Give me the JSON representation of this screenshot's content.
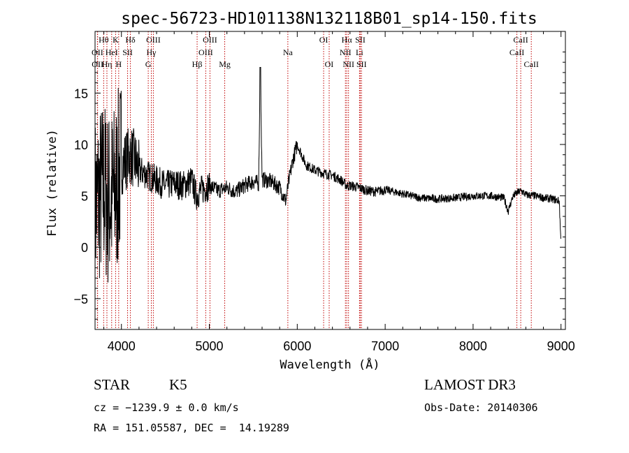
{
  "chart_data": {
    "type": "line",
    "title": "spec-56723-HD101138N132118B01_sp14-150.fits",
    "xlabel": "Wavelength (Å)",
    "ylabel": "Flux (relative)",
    "xlim": [
      3700,
      9050
    ],
    "ylim": [
      -8,
      21
    ],
    "x_ticks": [
      4000,
      5000,
      6000,
      7000,
      8000,
      9000
    ],
    "y_ticks": [
      -5,
      0,
      5,
      10,
      15
    ],
    "spectral_lines": [
      {
        "label": "Hθ",
        "wavelength": 3798,
        "row": 0
      },
      {
        "label": "OII",
        "wavelength": 3727,
        "row": 1
      },
      {
        "label": "OII",
        "wavelength": 3729,
        "row": 2
      },
      {
        "label": "Hη",
        "wavelength": 3835,
        "row": 2
      },
      {
        "label": "HeI",
        "wavelength": 3889,
        "row": 1
      },
      {
        "label": "K",
        "wavelength": 3934,
        "row": 0
      },
      {
        "label": "H",
        "wavelength": 3969,
        "row": 2
      },
      {
        "label": "SII",
        "wavelength": 4070,
        "row": 1
      },
      {
        "label": "Hδ",
        "wavelength": 4102,
        "row": 0
      },
      {
        "label": "OIII",
        "wavelength": 4363,
        "row": 0
      },
      {
        "label": "Hγ",
        "wavelength": 4340,
        "row": 1
      },
      {
        "label": "G",
        "wavelength": 4305,
        "row": 2
      },
      {
        "label": "Hβ",
        "wavelength": 4861,
        "row": 2
      },
      {
        "label": "OIII",
        "wavelength": 5007,
        "row": 0
      },
      {
        "label": "OIII",
        "wavelength": 4959,
        "row": 1
      },
      {
        "label": "Mg",
        "wavelength": 5175,
        "row": 2
      },
      {
        "label": "Na",
        "wavelength": 5893,
        "row": 1
      },
      {
        "label": "OI",
        "wavelength": 6300,
        "row": 0
      },
      {
        "label": "OI",
        "wavelength": 6363,
        "row": 2
      },
      {
        "label": "Hα",
        "wavelength": 6563,
        "row": 0
      },
      {
        "label": "NII",
        "wavelength": 6548,
        "row": 1
      },
      {
        "label": "NII",
        "wavelength": 6583,
        "row": 2
      },
      {
        "label": "SII",
        "wavelength": 6717,
        "row": 0
      },
      {
        "label": "Li",
        "wavelength": 6708,
        "row": 1
      },
      {
        "label": "SII",
        "wavelength": 6731,
        "row": 2
      },
      {
        "label": "CaII",
        "wavelength": 8498,
        "row": 1
      },
      {
        "label": "CaII",
        "wavelength": 8542,
        "row": 0
      },
      {
        "label": "CaII",
        "wavelength": 8662,
        "row": 2
      }
    ],
    "series": [
      {
        "name": "flux",
        "color": "#000000",
        "x": [
          3700,
          3750,
          3800,
          3850,
          3900,
          3950,
          4000,
          4050,
          4100,
          4150,
          4200,
          4300,
          4400,
          4500,
          4600,
          4700,
          4800,
          4850,
          4900,
          5000,
          5100,
          5200,
          5300,
          5400,
          5500,
          5560,
          5580,
          5600,
          5700,
          5800,
          5870,
          5900,
          5950,
          6000,
          6050,
          6100,
          6200,
          6300,
          6400,
          6500,
          6560,
          6600,
          6700,
          6800,
          6900,
          7000,
          7200,
          7400,
          7600,
          7800,
          8000,
          8200,
          8350,
          8400,
          8450,
          8500,
          8550,
          8600,
          8700,
          8800,
          8900,
          8980,
          9000
        ],
        "y": [
          4,
          5,
          6,
          4.5,
          5,
          6,
          8,
          8.5,
          9,
          8.5,
          7.5,
          7,
          6.5,
          6,
          6.2,
          6,
          6.5,
          5,
          5.5,
          6,
          5.5,
          5.8,
          5.4,
          6,
          6.4,
          6.2,
          17.5,
          6.6,
          6.4,
          5.8,
          4.5,
          6.2,
          8.5,
          10,
          9,
          8,
          7.5,
          7.2,
          7,
          6.5,
          6,
          6,
          5.8,
          5.5,
          5.4,
          5.6,
          5.2,
          4.8,
          4.7,
          4.8,
          5,
          5,
          4.8,
          3.5,
          4.9,
          5.3,
          5.5,
          5.1,
          5,
          4.8,
          4.7,
          4.5,
          0.2
        ]
      }
    ]
  },
  "info": {
    "object_type": "STAR",
    "subclass": "K5",
    "survey": "LAMOST DR3",
    "velocity": "cz = −1239.9 ± 0.0 km/s",
    "obs_date": "Obs-Date: 20140306",
    "coords": "RA = 151.05587, DEC =  14.19289"
  }
}
